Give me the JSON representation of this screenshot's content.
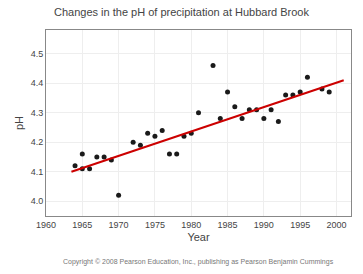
{
  "chart_data": {
    "type": "scatter",
    "title": "Changes in the pH of precipitation at Hubbard Brook",
    "xlabel": "Year",
    "ylabel": "pH",
    "xlim": [
      1960,
      2002
    ],
    "ylim": [
      3.95,
      4.58
    ],
    "xticks": [
      1960,
      1965,
      1970,
      1975,
      1980,
      1985,
      1990,
      1995,
      2000
    ],
    "yticks": [
      {
        "value": 4.0,
        "label": "4.0"
      },
      4.1,
      4.2,
      4.3,
      4.4,
      4.5
    ],
    "grid": true,
    "series": [
      {
        "type": "scatter",
        "color": "#1a1a1a",
        "marker": "circle",
        "x": [
          1964,
          1965,
          1965,
          1966,
          1967,
          1968,
          1969,
          1970,
          1972,
          1973,
          1974,
          1975,
          1976,
          1977,
          1978,
          1979,
          1980,
          1981,
          1983,
          1984,
          1985,
          1986,
          1987,
          1988,
          1989,
          1990,
          1991,
          1992,
          1993,
          1994,
          1995,
          1996,
          1998,
          1999
        ],
        "values": [
          4.12,
          4.16,
          4.11,
          4.11,
          4.15,
          4.15,
          4.14,
          4.02,
          4.2,
          4.19,
          4.23,
          4.22,
          4.24,
          4.16,
          4.16,
          4.22,
          4.23,
          4.3,
          4.46,
          4.28,
          4.37,
          4.32,
          4.28,
          4.31,
          4.31,
          4.28,
          4.31,
          4.27,
          4.36,
          4.36,
          4.37,
          4.42,
          4.38,
          4.37
        ]
      },
      {
        "type": "line",
        "color": "#cc0000",
        "line_style": "solid",
        "x": [
          1963.5,
          2001
        ],
        "values": [
          4.1,
          4.41
        ]
      }
    ],
    "annotations": [
      "Copyright © 2008 Pearson Education, Inc., publishing as Pearson Benjamin Cummings"
    ]
  }
}
